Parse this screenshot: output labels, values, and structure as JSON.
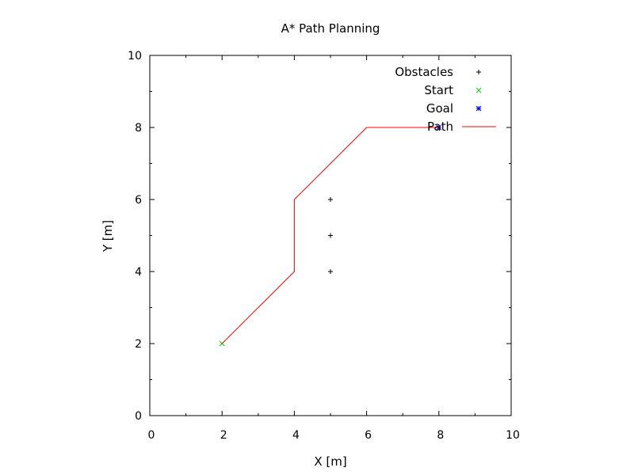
{
  "chart_data": {
    "type": "line",
    "title": "A* Path Planning",
    "xlabel": "X [m]",
    "ylabel": "Y [m]",
    "xlim": [
      0,
      10
    ],
    "ylim": [
      0,
      10
    ],
    "xticks": [
      "0",
      "2",
      "4",
      "6",
      "8",
      "10"
    ],
    "yticks": [
      "0",
      "2",
      "4",
      "6",
      "8",
      "10"
    ],
    "grid": false,
    "legend_position": "top-right",
    "series": [
      {
        "name": "Obstacles",
        "kind": "points",
        "marker": "plus",
        "color": "#000000",
        "points": [
          [
            5,
            4
          ],
          [
            5,
            5
          ],
          [
            5,
            6
          ]
        ]
      },
      {
        "name": "Start",
        "kind": "points",
        "marker": "cross",
        "color": "#00cc00",
        "points": [
          [
            2,
            2
          ]
        ]
      },
      {
        "name": "Goal",
        "kind": "points",
        "marker": "star",
        "color": "#0000ff",
        "points": [
          [
            8,
            8
          ]
        ]
      },
      {
        "name": "Path",
        "kind": "line",
        "color": "#ff0000",
        "points": [
          [
            2,
            2
          ],
          [
            4,
            4
          ],
          [
            4,
            6
          ],
          [
            6,
            8
          ],
          [
            8,
            8
          ]
        ]
      }
    ]
  }
}
